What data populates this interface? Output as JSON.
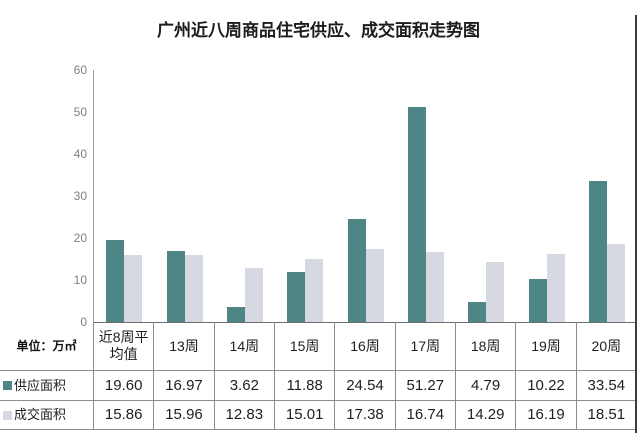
{
  "title": "广州近八周商品住宅供应、成交面积走势图",
  "unit_label": "单位：万㎡",
  "colors": {
    "supply_bar": "#4e8686",
    "transaction_bar": "#d6d8e2",
    "table_border": "#8c8c8c",
    "axis_line": "#9a9a9a",
    "tick_text": "#7f7f7f"
  },
  "chart_data": {
    "type": "bar",
    "title": "广州近八周商品住宅供应、成交面积走势图",
    "categories": [
      "近8周平均值",
      "13周",
      "14周",
      "15周",
      "16周",
      "17周",
      "18周",
      "19周",
      "20周"
    ],
    "series": [
      {
        "name": "供应面积",
        "color": "#4e8686",
        "values": [
          19.6,
          16.97,
          3.62,
          11.88,
          24.54,
          51.27,
          4.79,
          10.22,
          33.54
        ],
        "display": [
          "19.60",
          "16.97",
          "3.62",
          "11.88",
          "24.54",
          "51.27",
          "4.79",
          "10.22",
          "33.54"
        ]
      },
      {
        "name": "成交面积",
        "color": "#d6d8e2",
        "values": [
          15.86,
          15.96,
          12.83,
          15.01,
          17.38,
          16.74,
          14.29,
          16.19,
          18.51
        ],
        "display": [
          "15.86",
          "15.96",
          "12.83",
          "15.01",
          "17.38",
          "16.74",
          "14.29",
          "16.19",
          "18.51"
        ]
      }
    ],
    "ylabel": "万㎡",
    "ylim": [
      0,
      60
    ],
    "yticks": [
      0,
      10,
      20,
      30,
      40,
      50,
      60
    ],
    "grid": false,
    "legend_position": "table-left"
  }
}
